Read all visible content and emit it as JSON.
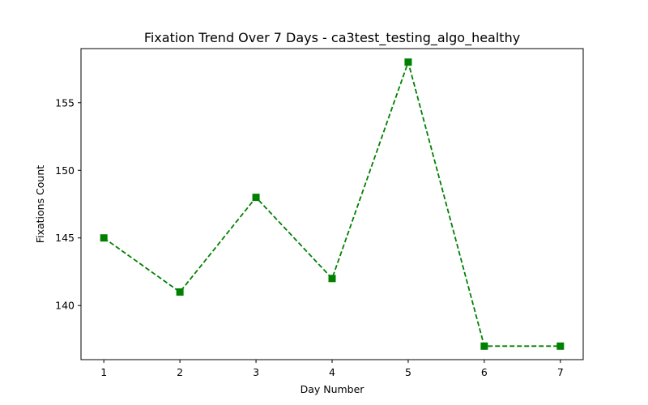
{
  "chart_data": {
    "type": "line",
    "title": "Fixation Trend Over 7 Days - ca3test_testing_algo_healthy",
    "xlabel": "Day Number",
    "ylabel": "Fixations Count",
    "x": [
      1,
      2,
      3,
      4,
      5,
      6,
      7
    ],
    "series": [
      {
        "values": [
          145,
          141,
          148,
          142,
          158,
          137,
          137
        ],
        "color": "#008000",
        "line_style": "dashed",
        "marker": "square"
      }
    ],
    "xticks": [
      1,
      2,
      3,
      4,
      5,
      6,
      7
    ],
    "yticks": [
      140,
      145,
      150,
      155
    ],
    "xlim": [
      0.7,
      7.3
    ],
    "ylim": [
      136,
      159
    ],
    "grid": false
  }
}
